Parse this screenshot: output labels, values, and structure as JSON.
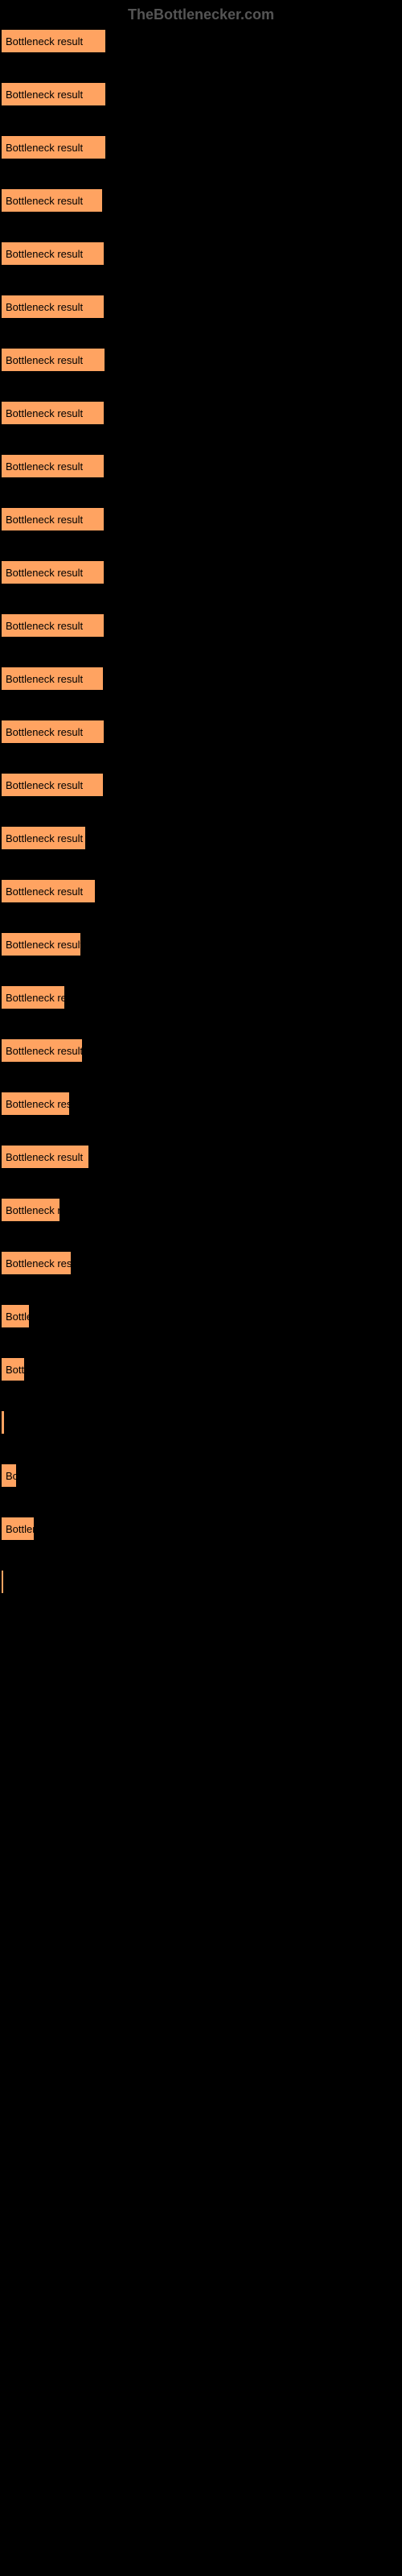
{
  "header": "TheBottlenecker.com",
  "bar_label": "Bottleneck result",
  "chart": {
    "type": "bar",
    "background_color": "#000000",
    "bar_color": "#ffa361",
    "text_color": "#000000",
    "header_color": "#555555",
    "max_width": 500,
    "bars": [
      {
        "width": 129
      },
      {
        "width": 129
      },
      {
        "width": 129
      },
      {
        "width": 125
      },
      {
        "width": 127
      },
      {
        "width": 127
      },
      {
        "width": 128
      },
      {
        "width": 127
      },
      {
        "width": 127
      },
      {
        "width": 127
      },
      {
        "width": 127
      },
      {
        "width": 127
      },
      {
        "width": 126
      },
      {
        "width": 127
      },
      {
        "width": 126
      },
      {
        "width": 104
      },
      {
        "width": 116
      },
      {
        "width": 98
      },
      {
        "width": 78
      },
      {
        "width": 100
      },
      {
        "width": 84
      },
      {
        "width": 108
      },
      {
        "width": 72
      },
      {
        "width": 86
      },
      {
        "width": 34
      },
      {
        "width": 28
      },
      {
        "width": 3
      },
      {
        "width": 18
      },
      {
        "width": 40
      },
      {
        "width": 2
      }
    ]
  }
}
